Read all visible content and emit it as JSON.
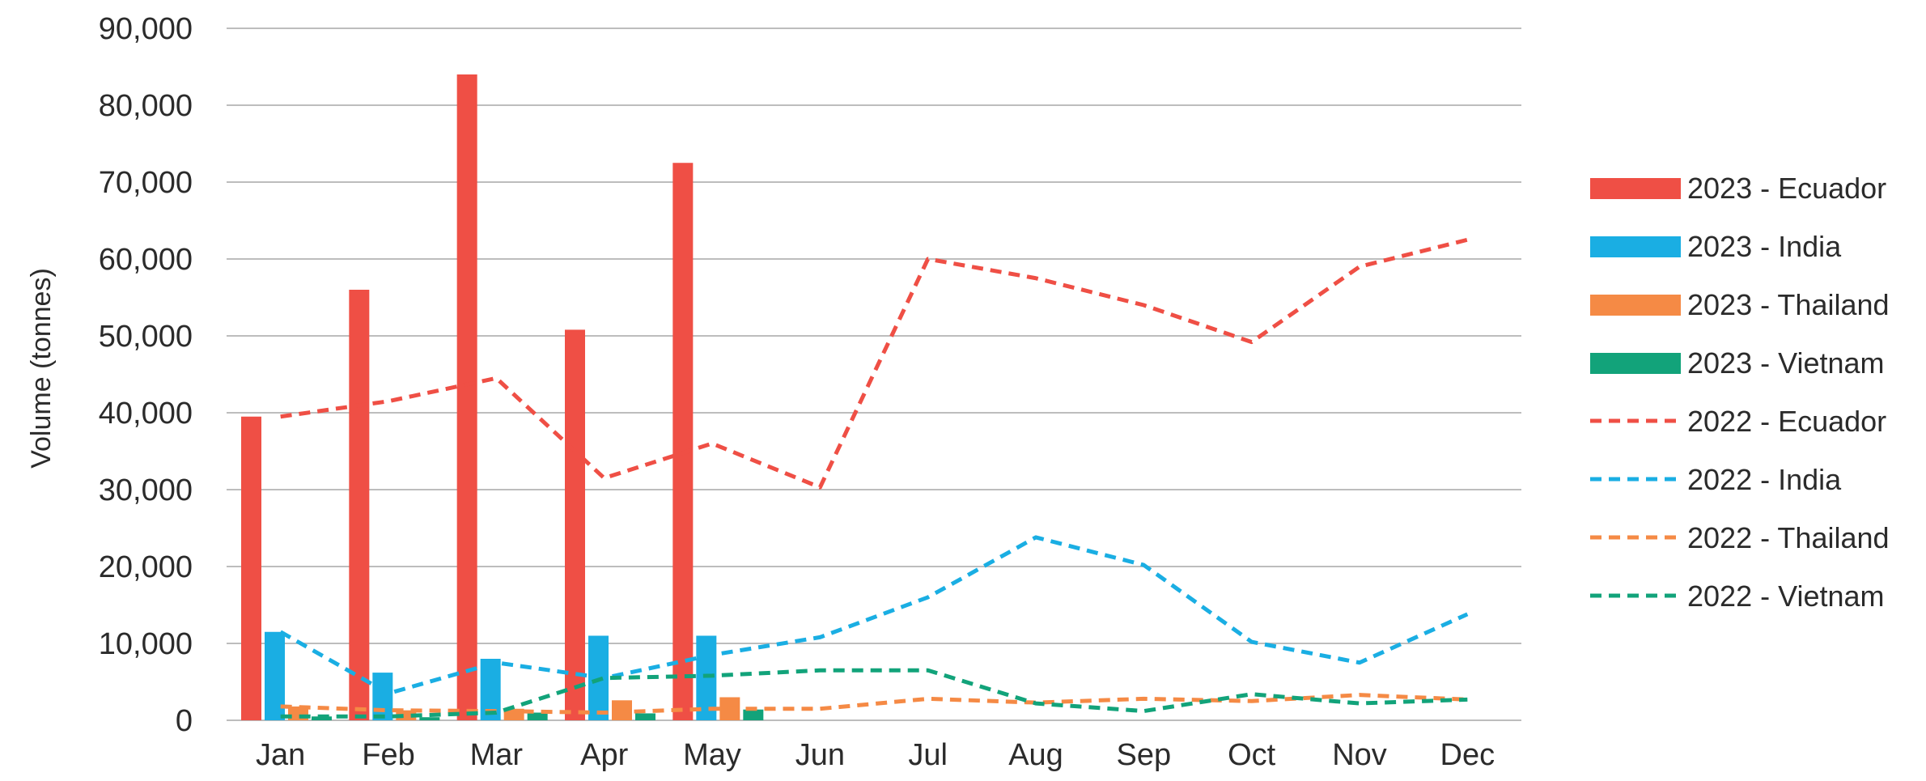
{
  "chart_data": {
    "type": "bar",
    "xlabel": "",
    "ylabel": "Volume (tonnes)",
    "ylim": [
      0,
      90000
    ],
    "yticks": [
      0,
      10000,
      20000,
      30000,
      40000,
      50000,
      60000,
      70000,
      80000,
      90000
    ],
    "ytick_labels": [
      "0",
      "10,000",
      "20,000",
      "30,000",
      "40,000",
      "50,000",
      "60,000",
      "70,000",
      "80,000",
      "90,000"
    ],
    "categories": [
      "Jan",
      "Feb",
      "Mar",
      "Apr",
      "May",
      "Jun",
      "Jul",
      "Aug",
      "Sep",
      "Oct",
      "Nov",
      "Dec"
    ],
    "grid": "horizontal",
    "legend_position": "right",
    "bar_series": [
      {
        "name": "2023 - Ecuador",
        "color": "#ef4f45",
        "values": [
          39500,
          56000,
          84000,
          50800,
          72500
        ]
      },
      {
        "name": "2023 - India",
        "color": "#1aaee3",
        "values": [
          11500,
          6200,
          8000,
          11000,
          11000
        ]
      },
      {
        "name": "2023 - Thailand",
        "color": "#f58a45",
        "values": [
          1800,
          1300,
          1500,
          2600,
          3000
        ]
      },
      {
        "name": "2023 - Vietnam",
        "color": "#12a37a",
        "values": [
          500,
          400,
          1000,
          900,
          1400
        ]
      }
    ],
    "line_series": [
      {
        "name": "2022 - Ecuador",
        "color": "#ef4f45",
        "values": [
          39500,
          41500,
          44500,
          31500,
          36000,
          30300,
          60000,
          57500,
          54000,
          49200,
          59000,
          62500
        ]
      },
      {
        "name": "2022 - India",
        "color": "#1aaee3",
        "values": [
          11500,
          3500,
          7500,
          5500,
          8500,
          10800,
          16000,
          23800,
          20200,
          10200,
          7500,
          13800
        ]
      },
      {
        "name": "2022 - Thailand",
        "color": "#f58a45",
        "values": [
          1800,
          1300,
          1200,
          1000,
          1500,
          1500,
          2800,
          2300,
          2800,
          2500,
          3300,
          2700
        ]
      },
      {
        "name": "2022 - Vietnam",
        "color": "#12a37a",
        "values": [
          500,
          500,
          1000,
          5500,
          5800,
          6500,
          6500,
          2200,
          1200,
          3400,
          2200,
          2700
        ]
      }
    ]
  }
}
